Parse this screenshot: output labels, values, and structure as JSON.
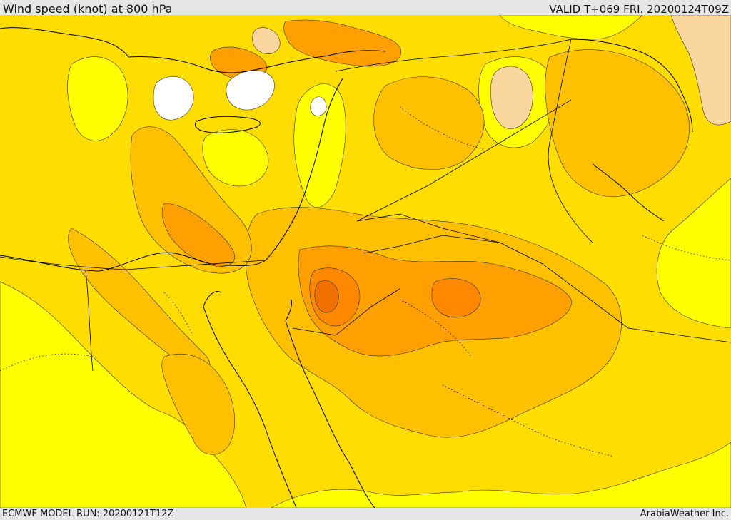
{
  "header": {
    "title": "Wind speed (knot) at 800 hPa",
    "valid": "VALID T+069 FRI. 20200124T09Z"
  },
  "footer": {
    "model_run": "ECMWF MODEL RUN: 20200121T12Z",
    "credit": "ArabiaWeather Inc."
  },
  "colors": {
    "band_lowest": "#ffff00",
    "band_low": "#ffdd00",
    "band_mid": "#ffc000",
    "band_high": "#ffa000",
    "band_higher": "#ff8800",
    "band_peak": "#f07000",
    "band_pale": "#fbd7a0",
    "band_calm": "#ffffff",
    "coastline": "#000000",
    "background": "#e6e6e6"
  }
}
